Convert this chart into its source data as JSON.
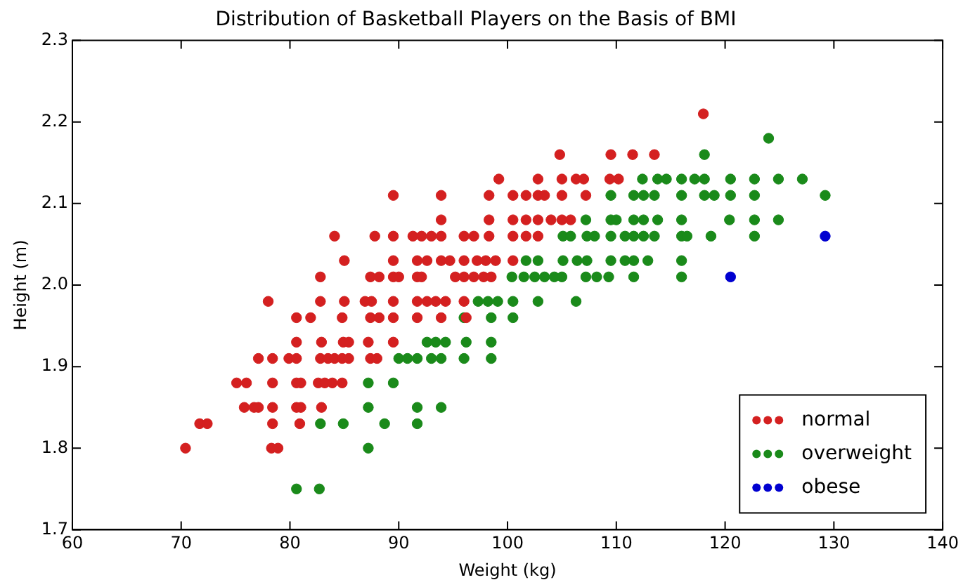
{
  "chart_data": {
    "type": "scatter",
    "title": "Distribution of Basketball Players on the Basis of BMI",
    "xlabel": "Weight (kg)",
    "ylabel": "Height (m)",
    "xlim": [
      60,
      140
    ],
    "xticks": [
      60,
      70,
      80,
      90,
      100,
      110,
      120,
      130,
      140
    ],
    "ylim": [
      1.7,
      2.3
    ],
    "yticks": [
      1.7,
      1.8,
      1.9,
      {
        "value": 2,
        "label": "2.0"
      },
      2.1,
      2.2,
      2.3
    ],
    "grid": false,
    "legend": "bottom right",
    "marker": "circle",
    "series": [
      {
        "name": "normal",
        "color": "#d42020",
        "x": [
          118.0,
          104.8,
          109.5,
          111.5,
          113.5,
          99.2,
          102.8,
          105.0,
          106.3,
          107.0,
          109.4,
          110.2,
          89.5,
          93.9,
          98.3,
          100.5,
          101.7,
          102.8,
          103.4,
          105.0,
          107.2,
          93.9,
          98.3,
          100.5,
          101.7,
          102.8,
          104.0,
          105.0,
          105.8,
          84.1,
          87.8,
          89.5,
          91.3,
          92.1,
          93.0,
          93.9,
          96.0,
          96.9,
          98.3,
          100.5,
          101.7,
          102.8,
          85.0,
          89.5,
          91.7,
          92.6,
          93.9,
          94.7,
          96.0,
          97.2,
          98.0,
          98.9,
          100.5,
          82.8,
          87.4,
          88.2,
          89.5,
          90.0,
          91.7,
          92.1,
          95.2,
          96.0,
          96.9,
          97.8,
          98.5,
          78.0,
          82.8,
          85.0,
          86.9,
          87.5,
          89.5,
          91.7,
          92.6,
          93.4,
          94.3,
          96.0,
          80.6,
          81.9,
          84.8,
          87.4,
          88.2,
          89.5,
          91.7,
          93.9,
          96.2,
          80.6,
          82.9,
          84.9,
          85.4,
          87.2,
          89.5,
          77.1,
          78.4,
          79.9,
          80.6,
          82.8,
          83.5,
          84.1,
          84.8,
          85.4,
          87.4,
          88.0,
          75.1,
          76.0,
          78.4,
          80.6,
          81.0,
          82.6,
          83.2,
          83.9,
          84.8,
          75.8,
          76.7,
          77.1,
          78.4,
          80.6,
          81.0,
          82.9,
          71.7,
          72.4,
          78.4,
          80.9,
          70.4,
          78.3,
          78.9
        ],
        "values": [
          2.21,
          2.16,
          2.16,
          2.16,
          2.16,
          2.13,
          2.13,
          2.13,
          2.13,
          2.13,
          2.13,
          2.13,
          2.11,
          2.11,
          2.11,
          2.11,
          2.11,
          2.11,
          2.11,
          2.11,
          2.11,
          2.08,
          2.08,
          2.08,
          2.08,
          2.08,
          2.08,
          2.08,
          2.08,
          2.06,
          2.06,
          2.06,
          2.06,
          2.06,
          2.06,
          2.06,
          2.06,
          2.06,
          2.06,
          2.06,
          2.06,
          2.06,
          2.03,
          2.03,
          2.03,
          2.03,
          2.03,
          2.03,
          2.03,
          2.03,
          2.03,
          2.03,
          2.03,
          2.01,
          2.01,
          2.01,
          2.01,
          2.01,
          2.01,
          2.01,
          2.01,
          2.01,
          2.01,
          2.01,
          2.01,
          1.98,
          1.98,
          1.98,
          1.98,
          1.98,
          1.98,
          1.98,
          1.98,
          1.98,
          1.98,
          1.98,
          1.96,
          1.96,
          1.96,
          1.96,
          1.96,
          1.96,
          1.96,
          1.96,
          1.96,
          1.93,
          1.93,
          1.93,
          1.93,
          1.93,
          1.93,
          1.91,
          1.91,
          1.91,
          1.91,
          1.91,
          1.91,
          1.91,
          1.91,
          1.91,
          1.91,
          1.91,
          1.88,
          1.88,
          1.88,
          1.88,
          1.88,
          1.88,
          1.88,
          1.88,
          1.88,
          1.85,
          1.85,
          1.85,
          1.85,
          1.85,
          1.85,
          1.85,
          1.83,
          1.83,
          1.83,
          1.83,
          1.8,
          1.8,
          1.8
        ]
      },
      {
        "name": "overweight",
        "color": "#1a8a1a",
        "x": [
          124.0,
          118.1,
          112.4,
          113.8,
          114.6,
          116.0,
          117.2,
          118.1,
          120.5,
          122.7,
          124.9,
          127.1,
          109.5,
          111.6,
          112.5,
          113.5,
          116.0,
          118.1,
          119.0,
          120.5,
          122.7,
          129.2,
          107.2,
          109.5,
          110.0,
          111.6,
          112.5,
          113.8,
          116.0,
          120.4,
          122.7,
          124.9,
          105.1,
          105.8,
          107.3,
          108.0,
          109.5,
          110.8,
          111.6,
          112.5,
          113.5,
          116.0,
          116.5,
          118.7,
          122.7,
          101.7,
          102.8,
          105.1,
          106.4,
          107.3,
          109.5,
          110.8,
          111.6,
          112.9,
          116.0,
          100.4,
          101.5,
          102.5,
          103.4,
          104.3,
          105.0,
          107.2,
          108.2,
          109.3,
          111.6,
          116.0,
          97.3,
          98.2,
          99.1,
          100.5,
          102.8,
          106.3,
          96.0,
          98.5,
          100.5,
          92.6,
          93.4,
          94.3,
          96.2,
          98.5,
          90.0,
          90.8,
          91.7,
          93.0,
          93.9,
          96.0,
          98.5,
          87.2,
          89.5,
          87.2,
          91.7,
          93.9,
          82.8,
          84.9,
          88.7,
          91.7,
          87.2,
          80.6,
          82.7
        ],
        "values": [
          2.18,
          2.16,
          2.13,
          2.13,
          2.13,
          2.13,
          2.13,
          2.13,
          2.13,
          2.13,
          2.13,
          2.13,
          2.11,
          2.11,
          2.11,
          2.11,
          2.11,
          2.11,
          2.11,
          2.11,
          2.11,
          2.11,
          2.08,
          2.08,
          2.08,
          2.08,
          2.08,
          2.08,
          2.08,
          2.08,
          2.08,
          2.08,
          2.06,
          2.06,
          2.06,
          2.06,
          2.06,
          2.06,
          2.06,
          2.06,
          2.06,
          2.06,
          2.06,
          2.06,
          2.06,
          2.03,
          2.03,
          2.03,
          2.03,
          2.03,
          2.03,
          2.03,
          2.03,
          2.03,
          2.03,
          2.01,
          2.01,
          2.01,
          2.01,
          2.01,
          2.01,
          2.01,
          2.01,
          2.01,
          2.01,
          2.01,
          1.98,
          1.98,
          1.98,
          1.98,
          1.98,
          1.98,
          1.96,
          1.96,
          1.96,
          1.93,
          1.93,
          1.93,
          1.93,
          1.93,
          1.91,
          1.91,
          1.91,
          1.91,
          1.91,
          1.91,
          1.91,
          1.88,
          1.88,
          1.85,
          1.85,
          1.85,
          1.83,
          1.83,
          1.83,
          1.83,
          1.8,
          1.75,
          1.75
        ]
      },
      {
        "name": "obese",
        "color": "#0000d0",
        "x": [
          120.5,
          129.2
        ],
        "values": [
          2.01,
          2.06
        ]
      }
    ]
  }
}
